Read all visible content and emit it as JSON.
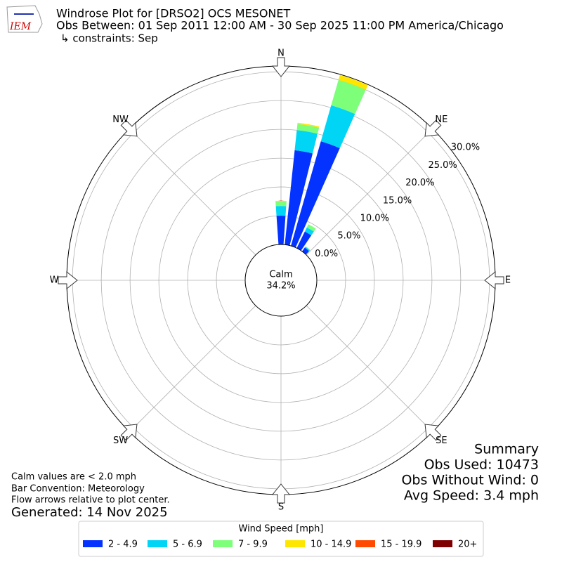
{
  "header": {
    "logo_text": "IEM",
    "title": "Windrose Plot for [DRSO2] OCS MESONET",
    "subtitle": "Obs Between: 01 Sep 2011 12:00 AM - 30 Sep 2025 11:00 PM America/Chicago",
    "constraints": "↳ constraints: Sep"
  },
  "notes": [
    "Calm values are < 2.0 mph",
    "Bar Convention: Meteorology",
    "Flow arrows relative to plot center."
  ],
  "generated": "Generated: 14 Nov 2025",
  "summary": [
    "Summary",
    "Obs Used: 10473",
    "Obs Without Wind: 0",
    "Avg Speed: 3.4 mph"
  ],
  "chart_data": {
    "type": "windrose",
    "calm": {
      "label": "Calm",
      "value": 34.2,
      "value_label": "34.2%"
    },
    "legend_title": "Wind Speed [mph]",
    "x": [
      0,
      10,
      20,
      30,
      40,
      50,
      60,
      70,
      80,
      90,
      100,
      110,
      120,
      130,
      140,
      150,
      160,
      170,
      180,
      190,
      200,
      210,
      220,
      230,
      240,
      250,
      260,
      270,
      280,
      290,
      300,
      310,
      320,
      330,
      340,
      350
    ],
    "xticks": [
      {
        "value": 0,
        "label": "N"
      },
      {
        "value": 45,
        "label": "NE"
      },
      {
        "value": 90,
        "label": "E"
      },
      {
        "value": 135,
        "label": "SE"
      },
      {
        "value": 180,
        "label": "S"
      },
      {
        "value": 225,
        "label": "SW"
      },
      {
        "value": 270,
        "label": "W"
      },
      {
        "value": 315,
        "label": "NW"
      }
    ],
    "ylim": [
      0,
      31
    ],
    "yticks": [
      {
        "value": 0,
        "label": "0.0%"
      },
      {
        "value": 5,
        "label": "5.0%"
      },
      {
        "value": 10,
        "label": "10.0%"
      },
      {
        "value": 15,
        "label": "15.0%"
      },
      {
        "value": 20,
        "label": "20.0%"
      },
      {
        "value": 25,
        "label": "25.0%"
      },
      {
        "value": 30,
        "label": "30.0%"
      }
    ],
    "grid": true,
    "series": [
      {
        "name": "2 - 4.9",
        "color": "#0433ff",
        "values": [
          5.0,
          16.5,
          18.9,
          3.2,
          0.8,
          0,
          0,
          0,
          0,
          0,
          0,
          0,
          0,
          0,
          0,
          0,
          0,
          0,
          0,
          0,
          0,
          0,
          0,
          0,
          0,
          0,
          0,
          0,
          0,
          0,
          0,
          0,
          0,
          0,
          0,
          0
        ]
      },
      {
        "name": "5 - 6.9",
        "color": "#00d5f5",
        "values": [
          1.7,
          3.5,
          6.5,
          0.8,
          0.2,
          0,
          0,
          0,
          0,
          0,
          0,
          0,
          0,
          0,
          0,
          0,
          0,
          0,
          0,
          0,
          0,
          0,
          0,
          0,
          0,
          0,
          0,
          0,
          0,
          0,
          0,
          0,
          0,
          0,
          0,
          0
        ]
      },
      {
        "name": "7 - 9.9",
        "color": "#7dff7a",
        "values": [
          0.8,
          1.1,
          4.6,
          0.6,
          0.1,
          0,
          0,
          0,
          0,
          0,
          0,
          0,
          0,
          0,
          0,
          0,
          0,
          0,
          0,
          0,
          0,
          0,
          0,
          0,
          0,
          0,
          0,
          0,
          0,
          0,
          0,
          0,
          0,
          0,
          0,
          0
        ]
      },
      {
        "name": "10 - 14.9",
        "color": "#ffe600",
        "values": [
          0.1,
          0.2,
          0.9,
          0,
          0,
          0,
          0,
          0,
          0,
          0,
          0,
          0,
          0,
          0,
          0,
          0,
          0,
          0,
          0,
          0,
          0,
          0,
          0,
          0,
          0,
          0,
          0,
          0,
          0,
          0,
          0,
          0,
          0,
          0,
          0,
          0
        ]
      },
      {
        "name": "15 - 19.9",
        "color": "#ff4a00",
        "values": [
          0,
          0,
          0,
          0,
          0,
          0,
          0,
          0,
          0,
          0,
          0,
          0,
          0,
          0,
          0,
          0,
          0,
          0,
          0,
          0,
          0,
          0,
          0,
          0,
          0,
          0,
          0,
          0,
          0,
          0,
          0,
          0,
          0,
          0,
          0,
          0
        ]
      },
      {
        "name": "20+",
        "color": "#7f0000",
        "values": [
          0,
          0,
          0,
          0,
          0,
          0,
          0,
          0,
          0,
          0,
          0,
          0,
          0,
          0,
          0,
          0,
          0,
          0,
          0,
          0,
          0,
          0,
          0,
          0,
          0,
          0,
          0,
          0,
          0,
          0,
          0,
          0,
          0,
          0,
          0,
          0
        ]
      }
    ]
  }
}
